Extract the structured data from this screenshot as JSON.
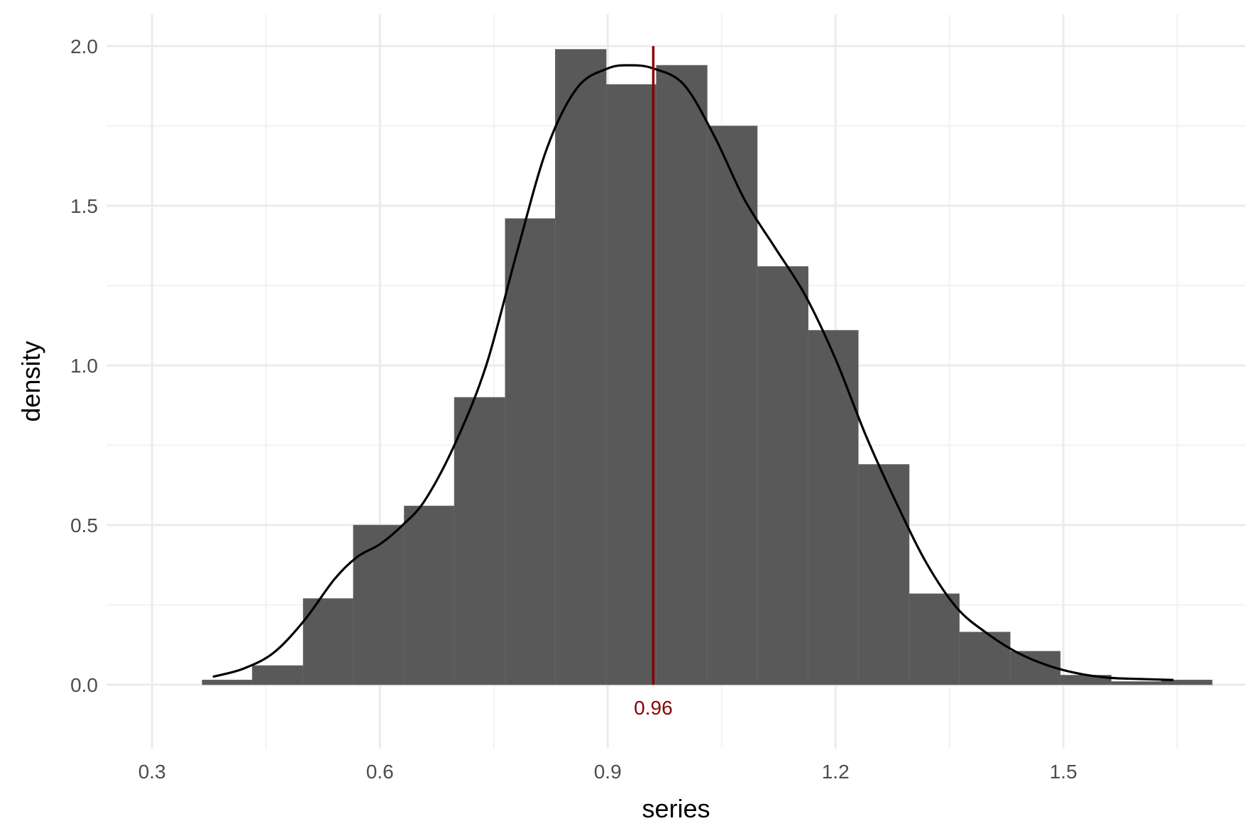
{
  "chart_data": {
    "type": "bar",
    "subtype": "histogram-with-density",
    "title": "",
    "xlabel": "series",
    "ylabel": "density",
    "xlim": [
      0.24,
      1.74
    ],
    "ylim": [
      -0.2,
      2.1
    ],
    "x_ticks": [
      0.3,
      0.6,
      0.9,
      1.2,
      1.5
    ],
    "x_tick_labels": [
      "0.3",
      "0.6",
      "0.9",
      "1.2",
      "1.5"
    ],
    "y_ticks": [
      0.0,
      0.5,
      1.0,
      1.5,
      2.0
    ],
    "y_tick_labels": [
      "0.0",
      "0.5",
      "1.0",
      "1.5",
      "2.0"
    ],
    "x_minor_ticks": [
      0.45,
      0.75,
      1.05,
      1.35,
      1.65
    ],
    "y_minor_ticks": [
      0.25,
      0.75,
      1.25,
      1.75
    ],
    "grid": true,
    "bin_width": 0.0665,
    "bins": [
      {
        "x0": 0.366,
        "x1": 0.432,
        "density": 0.015
      },
      {
        "x0": 0.432,
        "x1": 0.499,
        "density": 0.06
      },
      {
        "x0": 0.499,
        "x1": 0.565,
        "density": 0.27
      },
      {
        "x0": 0.565,
        "x1": 0.632,
        "density": 0.5
      },
      {
        "x0": 0.632,
        "x1": 0.698,
        "density": 0.56
      },
      {
        "x0": 0.698,
        "x1": 0.765,
        "density": 0.9
      },
      {
        "x0": 0.765,
        "x1": 0.831,
        "density": 1.46
      },
      {
        "x0": 0.831,
        "x1": 0.898,
        "density": 1.99
      },
      {
        "x0": 0.898,
        "x1": 0.964,
        "density": 1.88
      },
      {
        "x0": 0.964,
        "x1": 1.031,
        "density": 1.94
      },
      {
        "x0": 1.031,
        "x1": 1.097,
        "density": 1.75
      },
      {
        "x0": 1.097,
        "x1": 1.164,
        "density": 1.31
      },
      {
        "x0": 1.164,
        "x1": 1.23,
        "density": 1.11
      },
      {
        "x0": 1.23,
        "x1": 1.297,
        "density": 0.69
      },
      {
        "x0": 1.297,
        "x1": 1.363,
        "density": 0.285
      },
      {
        "x0": 1.363,
        "x1": 1.43,
        "density": 0.165
      },
      {
        "x0": 1.43,
        "x1": 1.496,
        "density": 0.105
      },
      {
        "x0": 1.496,
        "x1": 1.563,
        "density": 0.03
      },
      {
        "x0": 1.563,
        "x1": 1.629,
        "density": 0.01
      },
      {
        "x0": 1.629,
        "x1": 1.696,
        "density": 0.015
      }
    ],
    "density_curve": {
      "x": [
        0.38,
        0.42,
        0.46,
        0.5,
        0.54,
        0.57,
        0.6,
        0.63,
        0.66,
        0.7,
        0.74,
        0.78,
        0.82,
        0.86,
        0.9,
        0.93,
        0.96,
        1.0,
        1.04,
        1.08,
        1.12,
        1.16,
        1.2,
        1.24,
        1.28,
        1.32,
        1.36,
        1.4,
        1.44,
        1.48,
        1.52,
        1.56,
        1.6,
        1.645
      ],
      "y": [
        0.025,
        0.05,
        0.1,
        0.2,
        0.33,
        0.4,
        0.44,
        0.5,
        0.58,
        0.76,
        1.0,
        1.35,
        1.68,
        1.87,
        1.93,
        1.94,
        1.93,
        1.88,
        1.72,
        1.52,
        1.37,
        1.22,
        1.02,
        0.78,
        0.57,
        0.38,
        0.24,
        0.16,
        0.1,
        0.06,
        0.035,
        0.022,
        0.018,
        0.015
      ]
    },
    "reference_line": {
      "x": 0.96,
      "label": "0.96"
    },
    "colors": {
      "bar_fill": "#595959",
      "bar_edge": "#6a6a6a",
      "density_line": "#000000",
      "reference_line": "#8b0000",
      "grid_major": "#ebebeb",
      "grid_minor": "#f2f2f2",
      "tick_text": "#4d4d4d"
    }
  }
}
